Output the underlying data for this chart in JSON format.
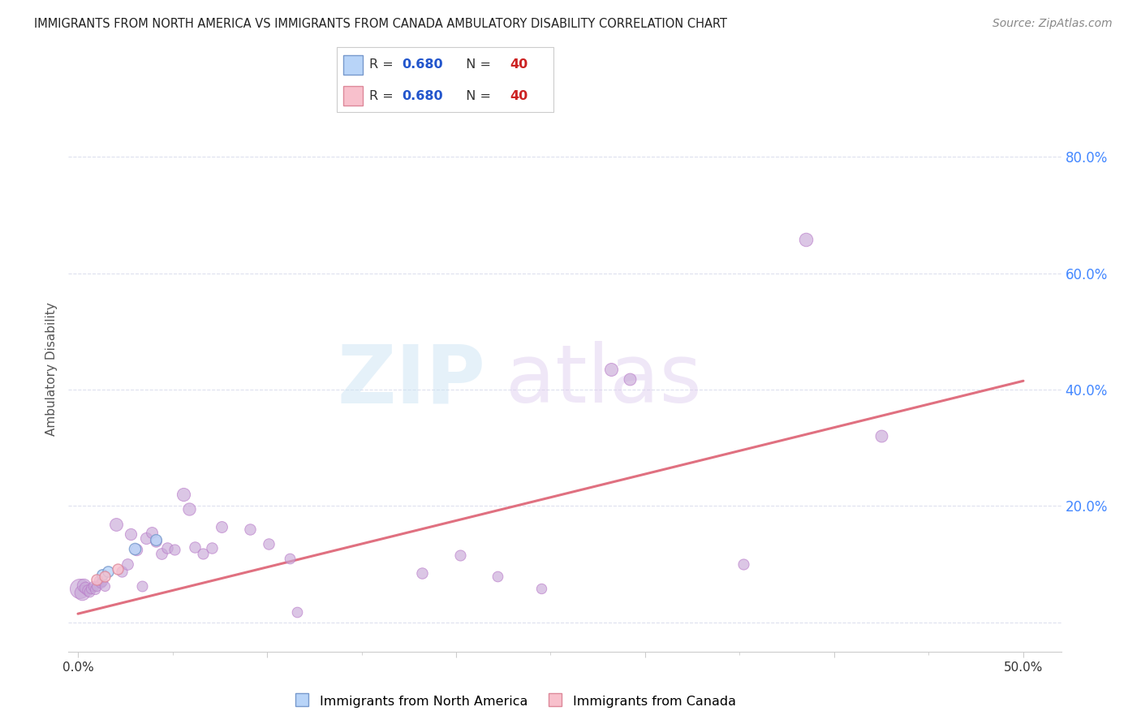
{
  "title": "IMMIGRANTS FROM NORTH AMERICA VS IMMIGRANTS FROM CANADA AMBULATORY DISABILITY CORRELATION CHART",
  "source": "Source: ZipAtlas.com",
  "ylabel": "Ambulatory Disability",
  "xlim": [
    -0.005,
    0.52
  ],
  "ylim": [
    -0.05,
    0.92
  ],
  "ytick_values": [
    0.0,
    0.2,
    0.4,
    0.6,
    0.8
  ],
  "xtick_values": [
    0.0,
    0.1,
    0.2,
    0.3,
    0.4,
    0.5
  ],
  "trendline_color": "#e07080",
  "trendline_x": [
    0.0,
    0.5
  ],
  "trendline_y": [
    0.015,
    0.415
  ],
  "bg_color": "#ffffff",
  "grid_color": "#dde0ee",
  "scatter_color": "#c8a8d8",
  "scatter_edge_color": "#b878c8",
  "na_color": "#b8d4f8",
  "na_edge_color": "#7799cc",
  "ca_color": "#f8c0cc",
  "ca_edge_color": "#dd8899",
  "right_tick_color": "#4488ff",
  "legend_r_color": "#2255cc",
  "legend_n_color": "#cc2222",
  "points": [
    [
      0.001,
      0.058,
      300
    ],
    [
      0.002,
      0.052,
      180
    ],
    [
      0.003,
      0.064,
      140
    ],
    [
      0.004,
      0.06,
      110
    ],
    [
      0.005,
      0.056,
      95
    ],
    [
      0.006,
      0.053,
      85
    ],
    [
      0.007,
      0.058,
      80
    ],
    [
      0.008,
      0.062,
      80
    ],
    [
      0.009,
      0.057,
      78
    ],
    [
      0.01,
      0.063,
      78
    ],
    [
      0.011,
      0.072,
      80
    ],
    [
      0.012,
      0.068,
      80
    ],
    [
      0.013,
      0.071,
      78
    ],
    [
      0.014,
      0.062,
      76
    ],
    [
      0.02,
      0.168,
      130
    ],
    [
      0.023,
      0.088,
      92
    ],
    [
      0.026,
      0.1,
      98
    ],
    [
      0.028,
      0.152,
      105
    ],
    [
      0.031,
      0.125,
      108
    ],
    [
      0.034,
      0.062,
      88
    ],
    [
      0.036,
      0.145,
      105
    ],
    [
      0.039,
      0.155,
      100
    ],
    [
      0.041,
      0.14,
      94
    ],
    [
      0.044,
      0.118,
      98
    ],
    [
      0.047,
      0.128,
      94
    ],
    [
      0.051,
      0.125,
      90
    ],
    [
      0.056,
      0.22,
      135
    ],
    [
      0.059,
      0.195,
      122
    ],
    [
      0.062,
      0.13,
      94
    ],
    [
      0.066,
      0.118,
      90
    ],
    [
      0.071,
      0.128,
      94
    ],
    [
      0.076,
      0.165,
      100
    ],
    [
      0.091,
      0.16,
      94
    ],
    [
      0.101,
      0.135,
      94
    ],
    [
      0.112,
      0.11,
      84
    ],
    [
      0.116,
      0.018,
      84
    ],
    [
      0.182,
      0.085,
      94
    ],
    [
      0.202,
      0.115,
      90
    ],
    [
      0.222,
      0.08,
      84
    ],
    [
      0.245,
      0.058,
      80
    ],
    [
      0.282,
      0.435,
      132
    ],
    [
      0.292,
      0.418,
      115
    ],
    [
      0.352,
      0.1,
      90
    ],
    [
      0.385,
      0.658,
      142
    ],
    [
      0.425,
      0.32,
      115
    ]
  ],
  "na_points": [
    [
      0.013,
      0.082,
      95
    ],
    [
      0.016,
      0.088,
      92
    ],
    [
      0.03,
      0.127,
      105
    ],
    [
      0.041,
      0.142,
      98
    ]
  ],
  "ca_points": [
    [
      0.01,
      0.074,
      90
    ],
    [
      0.014,
      0.08,
      88
    ],
    [
      0.021,
      0.092,
      88
    ]
  ]
}
